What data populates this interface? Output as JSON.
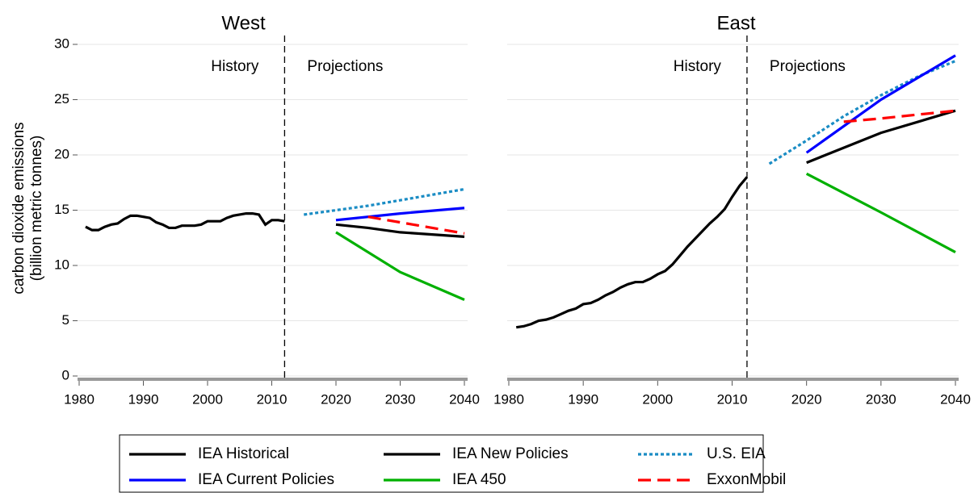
{
  "chart_data": [
    {
      "type": "line",
      "title": "West",
      "ylabel": [
        "carbon dioxide emissions",
        "(billion metric tonnes)"
      ],
      "annotations": [
        "History",
        "Projections"
      ],
      "divider": 2012,
      "xlim": [
        1980,
        2040
      ],
      "xticks": [
        1980,
        1990,
        2000,
        2010,
        2020,
        2030,
        2040
      ],
      "ylim": [
        0,
        30
      ],
      "yticks": [
        0,
        5,
        10,
        15,
        20,
        25,
        30
      ],
      "grid": true,
      "series": [
        {
          "name": "IEA Historical",
          "color": "#000000",
          "dash": "solid",
          "x": [
            1981,
            1982,
            1983,
            1984,
            1985,
            1986,
            1987,
            1988,
            1989,
            1990,
            1991,
            1992,
            1993,
            1994,
            1995,
            1996,
            1997,
            1998,
            1999,
            2000,
            2001,
            2002,
            2003,
            2004,
            2005,
            2006,
            2007,
            2008,
            2009,
            2010,
            2011,
            2012
          ],
          "values": [
            13.5,
            13.2,
            13.2,
            13.5,
            13.7,
            13.8,
            14.2,
            14.5,
            14.5,
            14.4,
            14.3,
            13.9,
            13.7,
            13.4,
            13.4,
            13.6,
            13.6,
            13.6,
            13.7,
            14.0,
            14.0,
            14.0,
            14.3,
            14.5,
            14.6,
            14.7,
            14.7,
            14.6,
            13.7,
            14.1,
            14.1,
            14.0
          ]
        },
        {
          "name": "IEA New Policies",
          "color": "#000000",
          "dash": "solid",
          "x": [
            2020,
            2025,
            2030,
            2035,
            2040
          ],
          "values": [
            13.7,
            13.4,
            13.0,
            12.8,
            12.6
          ]
        },
        {
          "name": "U.S. EIA",
          "color": "#1a8cc4",
          "dash": "dotted",
          "x": [
            2015,
            2020,
            2025,
            2030,
            2035,
            2040
          ],
          "values": [
            14.6,
            15.0,
            15.4,
            15.9,
            16.4,
            16.9
          ]
        },
        {
          "name": "IEA Current Policies",
          "color": "#0000ff",
          "dash": "solid",
          "x": [
            2020,
            2030,
            2040
          ],
          "values": [
            14.1,
            14.7,
            15.2
          ]
        },
        {
          "name": "IEA 450",
          "color": "#00b000",
          "dash": "solid",
          "x": [
            2020,
            2030,
            2040
          ],
          "values": [
            13.0,
            9.4,
            6.9
          ]
        },
        {
          "name": "ExxonMobil",
          "color": "#ff0000",
          "dash": "dashed",
          "x": [
            2025,
            2030,
            2040
          ],
          "values": [
            14.4,
            13.9,
            12.9
          ]
        }
      ]
    },
    {
      "type": "line",
      "title": "East",
      "annotations": [
        "History",
        "Projections"
      ],
      "divider": 2012,
      "xlim": [
        1980,
        2040
      ],
      "xticks": [
        1980,
        1990,
        2000,
        2010,
        2020,
        2030,
        2040
      ],
      "ylim": [
        0,
        30
      ],
      "yticks": [
        0,
        5,
        10,
        15,
        20,
        25,
        30
      ],
      "grid": true,
      "series": [
        {
          "color": "#000000",
          "dash": "solid",
          "x": [
            1981,
            1982,
            1983,
            1984,
            1985,
            1986,
            1987,
            1988,
            1989,
            1990,
            1991,
            1992,
            1993,
            1994,
            1995,
            1996,
            1997,
            1998,
            1999,
            2000,
            2001,
            2002,
            2003,
            2004,
            2005,
            2006,
            2007,
            2008,
            2009,
            2010,
            2011,
            2012
          ],
          "values": [
            4.4,
            4.5,
            4.7,
            5.0,
            5.1,
            5.3,
            5.6,
            5.9,
            6.1,
            6.5,
            6.6,
            6.9,
            7.3,
            7.6,
            8.0,
            8.3,
            8.5,
            8.5,
            8.8,
            9.2,
            9.5,
            10.1,
            10.9,
            11.7,
            12.4,
            13.1,
            13.8,
            14.4,
            15.1,
            16.2,
            17.2,
            18.0
          ]
        },
        {
          "color": "#000000",
          "dash": "solid",
          "x": [
            2020,
            2030,
            2040
          ],
          "values": [
            19.3,
            22.0,
            24.0
          ]
        },
        {
          "color": "#1a8cc4",
          "dash": "dotted",
          "x": [
            2015,
            2020,
            2025,
            2030,
            2035,
            2040
          ],
          "values": [
            19.2,
            21.3,
            23.5,
            25.4,
            27.1,
            28.5
          ]
        },
        {
          "color": "#0000ff",
          "dash": "solid",
          "x": [
            2020,
            2030,
            2040
          ],
          "values": [
            20.2,
            25.0,
            29.0
          ]
        },
        {
          "color": "#00b000",
          "dash": "solid",
          "x": [
            2020,
            2030,
            2040
          ],
          "values": [
            18.3,
            14.8,
            11.2
          ]
        },
        {
          "color": "#ff0000",
          "dash": "dashed",
          "x": [
            2025,
            2030,
            2040
          ],
          "values": [
            23.0,
            23.3,
            24.0
          ]
        }
      ]
    }
  ]
}
